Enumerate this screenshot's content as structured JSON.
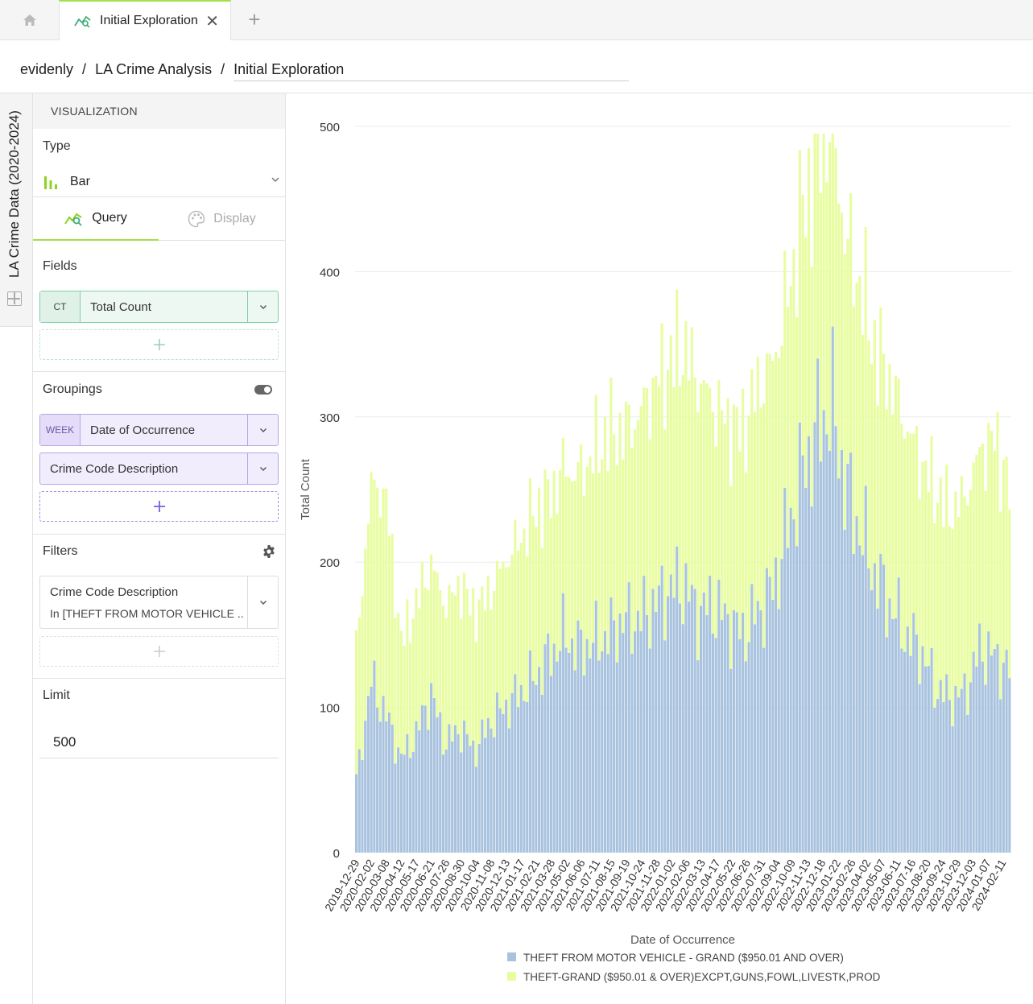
{
  "tabs": {
    "home_icon": "home-icon",
    "active_tab_label": "Initial Exploration",
    "close_glyph": "✕",
    "add_glyph": "+"
  },
  "breadcrumb": {
    "org": "evidenly",
    "separator": "/",
    "project": "LA Crime Analysis",
    "title": "Initial Exploration"
  },
  "dataset": {
    "name": "LA Crime Data (2020-2024)"
  },
  "panel": {
    "header": "VISUALIZATION",
    "type_label": "Type",
    "type_value": "Bar",
    "query_tab": "Query",
    "display_tab": "Display",
    "fields_label": "Fields",
    "field": {
      "tag": "CT",
      "name": "Total Count"
    },
    "groupings_label": "Groupings",
    "groupings": [
      {
        "tag": "WEEK",
        "name": "Date of Occurrence"
      },
      {
        "tag": "",
        "name": "Crime Code Description"
      }
    ],
    "filters_label": "Filters",
    "filter": {
      "field": "Crime Code Description",
      "value": "In [THEFT FROM MOTOR VEHICLE ..."
    },
    "limit_label": "Limit",
    "limit_value": "500"
  },
  "colors": {
    "accent": "#a4e04a",
    "series_blue": "#a9c3df",
    "series_yellow": "#e8fda0"
  },
  "chart_data": {
    "type": "bar",
    "stacked": true,
    "ylabel": "Total Count",
    "xlabel": "Date of Occurrence",
    "ylim": [
      0,
      500
    ],
    "yticks": [
      0,
      100,
      200,
      300,
      400,
      500
    ],
    "grid": true,
    "legend_position": "bottom",
    "tick_labels": [
      "2019-12-29",
      "2020-02-02",
      "2020-03-08",
      "2020-04-12",
      "2020-05-17",
      "2020-06-21",
      "2020-07-26",
      "2020-08-30",
      "2020-10-04",
      "2020-11-08",
      "2020-12-13",
      "2021-01-17",
      "2021-02-21",
      "2021-03-28",
      "2021-05-02",
      "2021-06-06",
      "2021-07-11",
      "2021-08-15",
      "2021-09-19",
      "2021-10-24",
      "2021-11-28",
      "2022-01-02",
      "2022-02-06",
      "2022-03-13",
      "2022-04-17",
      "2022-05-22",
      "2022-06-26",
      "2022-07-31",
      "2022-09-04",
      "2022-10-09",
      "2022-11-13",
      "2022-12-18",
      "2023-01-22",
      "2023-02-26",
      "2023-04-02",
      "2023-05-07",
      "2023-06-11",
      "2023-07-16",
      "2023-08-20",
      "2023-09-24",
      "2023-10-29",
      "2023-12-03",
      "2024-01-07",
      "2024-02-11"
    ],
    "series": [
      {
        "name": "THEFT FROM MOTOR VEHICLE - GRAND ($950.01 AND OVER)",
        "keyframes": [
          50,
          118,
          95,
          65,
          80,
          110,
          75,
          85,
          70,
          90,
          100,
          110,
          120,
          135,
          150,
          140,
          145,
          150,
          160,
          160,
          170,
          180,
          185,
          165,
          170,
          160,
          150,
          165,
          180,
          220,
          260,
          290,
          310,
          250,
          220,
          190,
          170,
          150,
          140,
          115,
          105,
          110,
          140,
          135,
          125
        ]
      },
      {
        "name": "THEFT-GRAND ($950.01 & OVER)EXCPT,GUNS,FOWL,LIVESTK,PROD",
        "keyframes": [
          90,
          135,
          150,
          80,
          90,
          90,
          95,
          100,
          95,
          90,
          100,
          105,
          115,
          110,
          115,
          120,
          130,
          140,
          130,
          140,
          150,
          155,
          165,
          160,
          140,
          135,
          140,
          155,
          155,
          160,
          180,
          185,
          195,
          170,
          170,
          155,
          155,
          145,
          130,
          135,
          130,
          135,
          135,
          150,
          125
        ]
      }
    ]
  }
}
